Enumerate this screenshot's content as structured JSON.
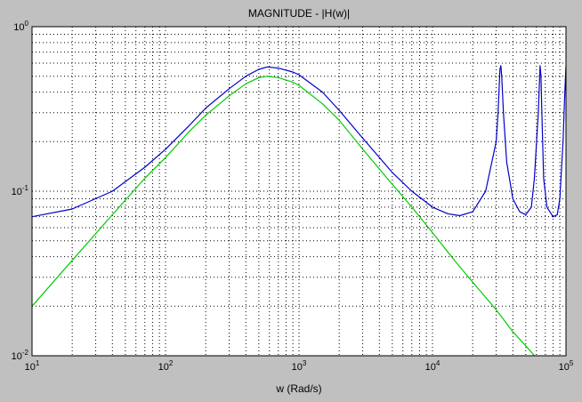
{
  "chart_data": {
    "type": "line",
    "title": "MAGNITUDE - |H(w)|",
    "xlabel": "w (Rad/s)",
    "ylabel": "",
    "xscale": "log",
    "yscale": "log",
    "xlim": [
      10,
      100000
    ],
    "ylim": [
      0.01,
      1
    ],
    "grid": true,
    "xticks": [
      {
        "base": "10",
        "exp": "1"
      },
      {
        "base": "10",
        "exp": "2"
      },
      {
        "base": "10",
        "exp": "3"
      },
      {
        "base": "10",
        "exp": "4"
      },
      {
        "base": "10",
        "exp": "5"
      }
    ],
    "yticks": [
      {
        "base": "10",
        "exp": "-2"
      },
      {
        "base": "10",
        "exp": "-1"
      },
      {
        "base": "10",
        "exp": "0"
      }
    ],
    "series": [
      {
        "color": "#0000cc",
        "x": [
          10,
          20,
          40,
          70,
          100,
          150,
          200,
          300,
          400,
          500,
          580,
          700,
          900,
          1000,
          1500,
          2000,
          3000,
          5000,
          7000,
          10000,
          13000,
          16000,
          20000,
          25000,
          30000,
          31000,
          32000,
          32500,
          33000,
          34000,
          36000,
          40000,
          45000,
          50000,
          55000,
          58000,
          62000,
          64000,
          65000,
          66000,
          68000,
          72000,
          80000,
          86000,
          90000,
          95000,
          98000,
          100000
        ],
        "y": [
          0.07,
          0.078,
          0.1,
          0.14,
          0.18,
          0.25,
          0.32,
          0.42,
          0.5,
          0.55,
          0.57,
          0.56,
          0.53,
          0.51,
          0.4,
          0.31,
          0.21,
          0.13,
          0.1,
          0.08,
          0.073,
          0.071,
          0.075,
          0.1,
          0.2,
          0.3,
          0.55,
          0.58,
          0.5,
          0.3,
          0.15,
          0.09,
          0.075,
          0.072,
          0.08,
          0.12,
          0.3,
          0.58,
          0.5,
          0.3,
          0.12,
          0.08,
          0.07,
          0.072,
          0.09,
          0.2,
          0.4,
          0.58
        ]
      },
      {
        "color": "#00cc00",
        "x": [
          10,
          20,
          40,
          70,
          100,
          150,
          200,
          300,
          400,
          500,
          580,
          700,
          900,
          1000,
          1500,
          2000,
          3000,
          5000,
          7000,
          10000,
          15000,
          20000,
          30000,
          40000,
          50000,
          60000,
          70000
        ],
        "y": [
          0.02,
          0.038,
          0.072,
          0.12,
          0.16,
          0.23,
          0.29,
          0.38,
          0.45,
          0.49,
          0.5,
          0.49,
          0.46,
          0.44,
          0.34,
          0.27,
          0.18,
          0.11,
          0.08,
          0.056,
          0.037,
          0.028,
          0.019,
          0.014,
          0.0115,
          0.0097,
          0.0083
        ]
      }
    ]
  }
}
